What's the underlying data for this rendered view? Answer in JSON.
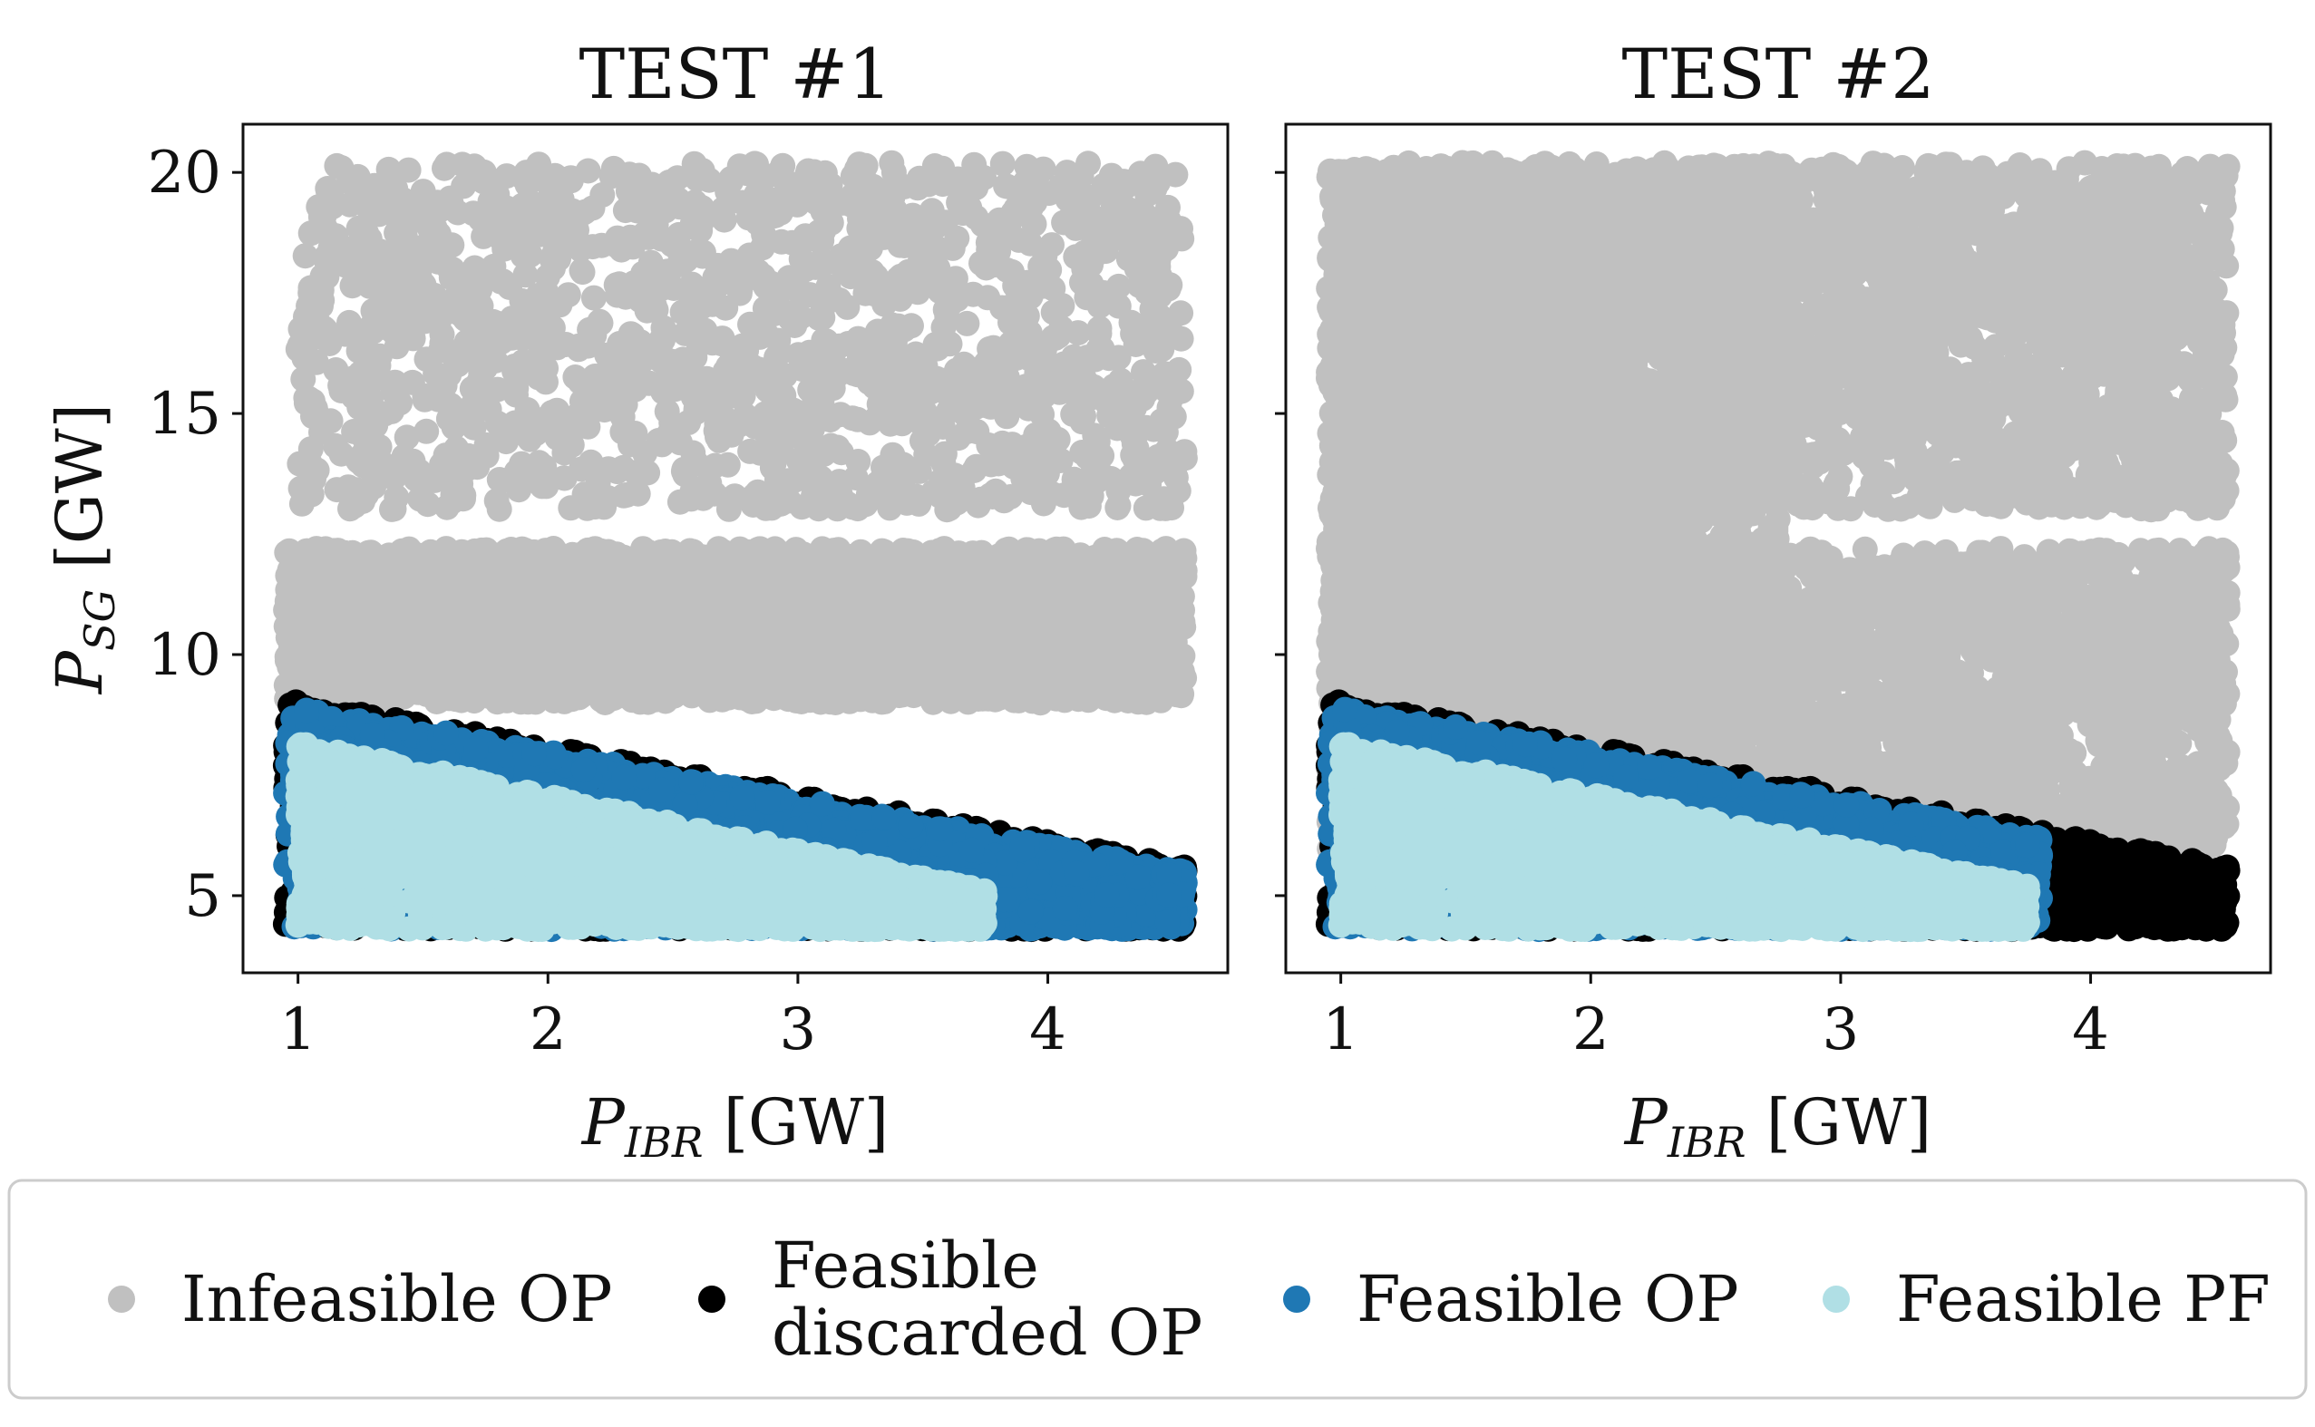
{
  "chart_data": [
    {
      "type": "scatter",
      "title": "TEST #1",
      "xlabel": {
        "main": "P",
        "sub": "IBR",
        "unit": " [GW]"
      },
      "ylabel": {
        "main": "P",
        "sub": "SG",
        "unit": " [GW]"
      },
      "xlim": [
        0.78,
        4.72
      ],
      "ylim": [
        3.4,
        21.0
      ],
      "xticks": [
        1,
        2,
        3,
        4
      ],
      "yticks": [
        5,
        10,
        15,
        20
      ],
      "grid": false,
      "series": [
        {
          "name": "Infeasible OP",
          "color": "#c0c0c0",
          "region": "upper-sparse",
          "x_range": [
            1.0,
            4.55
          ],
          "y_range": [
            13.0,
            20.2
          ]
        },
        {
          "name": "Infeasible OP",
          "color": "#c0c0c0",
          "region": "dense-band",
          "x_range": [
            0.95,
            4.55
          ],
          "y_range": [
            9.0,
            12.2
          ]
        },
        {
          "name": "Feasible discarded OP",
          "color": "#000000",
          "region": "below-boundary",
          "boundary": [
            [
              0.95,
              9.1
            ],
            [
              4.55,
              5.6
            ]
          ],
          "y_min": 4.3
        },
        {
          "name": "Feasible OP",
          "color": "#1f78b4",
          "region": "below-boundary",
          "boundary": [
            [
              0.95,
              9.0
            ],
            [
              4.55,
              5.5
            ]
          ],
          "y_min": 4.3
        },
        {
          "name": "Feasible PF",
          "color": "#b0dfe5",
          "region": "wedge",
          "boundary": [
            [
              1.0,
              8.2
            ],
            [
              3.75,
              5.1
            ]
          ],
          "y_min": 4.3
        }
      ]
    },
    {
      "type": "scatter",
      "title": "TEST #2",
      "xlabel": {
        "main": "P",
        "sub": "IBR",
        "unit": " [GW]"
      },
      "ylabel": {
        "main": "",
        "sub": "",
        "unit": ""
      },
      "xlim": [
        0.78,
        4.72
      ],
      "ylim": [
        3.4,
        21.0
      ],
      "xticks": [
        1,
        2,
        3,
        4
      ],
      "yticks": [
        5,
        10,
        15,
        20
      ],
      "grid": false,
      "series": [
        {
          "name": "Infeasible OP",
          "color": "#c0c0c0",
          "region": "dense-block",
          "x_range": [
            0.95,
            2.75
          ],
          "y_range": [
            9.0,
            20.2
          ]
        },
        {
          "name": "Infeasible OP",
          "color": "#c0c0c0",
          "region": "upper-sparse",
          "x_range": [
            2.75,
            4.55
          ],
          "y_range": [
            13.0,
            20.2
          ]
        },
        {
          "name": "Infeasible OP",
          "color": "#c0c0c0",
          "region": "dense-band",
          "x_range": [
            0.95,
            4.55
          ],
          "y_range": [
            5.8,
            12.2
          ]
        },
        {
          "name": "Feasible discarded OP",
          "color": "#000000",
          "region": "below-boundary",
          "boundary": [
            [
              0.95,
              9.1
            ],
            [
              4.55,
              5.6
            ]
          ],
          "y_min": 4.3
        },
        {
          "name": "Feasible OP",
          "color": "#1f78b4",
          "region": "below-boundary",
          "boundary": [
            [
              0.95,
              9.0
            ],
            [
              3.8,
              6.2
            ]
          ],
          "y_min": 4.3
        },
        {
          "name": "Feasible PF",
          "color": "#b0dfe5",
          "region": "wedge",
          "boundary": [
            [
              1.0,
              8.2
            ],
            [
              3.75,
              5.2
            ]
          ],
          "y_min": 4.3
        }
      ]
    }
  ],
  "legend": {
    "items": [
      {
        "label_lines": [
          "Infeasible OP"
        ],
        "color": "#c0c0c0"
      },
      {
        "label_lines": [
          "Feasible",
          "discarded OP"
        ],
        "color": "#000000"
      },
      {
        "label_lines": [
          "Feasible OP"
        ],
        "color": "#1f78b4"
      },
      {
        "label_lines": [
          "Feasible PF"
        ],
        "color": "#b0dfe5"
      }
    ],
    "position": "bottom"
  }
}
